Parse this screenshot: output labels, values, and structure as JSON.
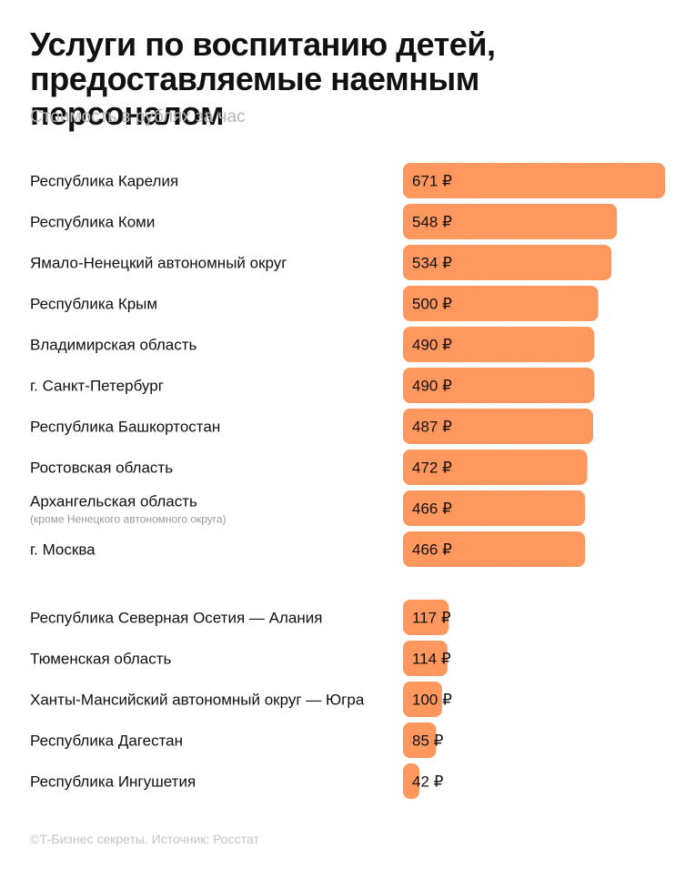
{
  "chart_data": {
    "type": "bar",
    "orientation": "horizontal",
    "title_lines": [
      "Услуги по воспитанию детей,",
      "предоставляемые наемным персоналом"
    ],
    "subtitle": "Стоимость в рублях за час",
    "unit_suffix": " ₽",
    "groups": [
      {
        "name": "top",
        "categories": [
          {
            "label": "Республика Карелия",
            "note": "",
            "value": 671
          },
          {
            "label": "Республика Коми",
            "note": "",
            "value": 548
          },
          {
            "label": "Ямало-Ненецкий автономный округ",
            "note": "",
            "value": 534
          },
          {
            "label": "Республика Крым",
            "note": "",
            "value": 500
          },
          {
            "label": "Владимирская область",
            "note": "",
            "value": 490
          },
          {
            "label": "г. Санкт-Петербург",
            "note": "",
            "value": 490
          },
          {
            "label": "Республика Башкортостан",
            "note": "",
            "value": 487
          },
          {
            "label": "Ростовская область",
            "note": "",
            "value": 472
          },
          {
            "label": "Архангельская область",
            "note": "(кроме Ненецкого автономного округа)",
            "value": 466
          },
          {
            "label": "г. Москва",
            "note": "",
            "value": 466
          }
        ]
      },
      {
        "name": "bottom",
        "categories": [
          {
            "label": "Республика Северная Осетия — Алания",
            "note": "",
            "value": 117
          },
          {
            "label": "Тюменская область",
            "note": "",
            "value": 114
          },
          {
            "label": "Ханты-Мансийский автономный округ — Югра",
            "note": "",
            "value": 100
          },
          {
            "label": "Республика Дагестан",
            "note": "",
            "value": 85
          },
          {
            "label": "Республика Ингушетия",
            "note": "",
            "value": 42
          }
        ]
      }
    ],
    "xlim": [
      0,
      671
    ],
    "bar_color": "#ff8c4d",
    "text_color": "#111111",
    "note_color": "#9a9a9a"
  },
  "footer": "©Т-Бизнес секреты. Источник: Росстат"
}
